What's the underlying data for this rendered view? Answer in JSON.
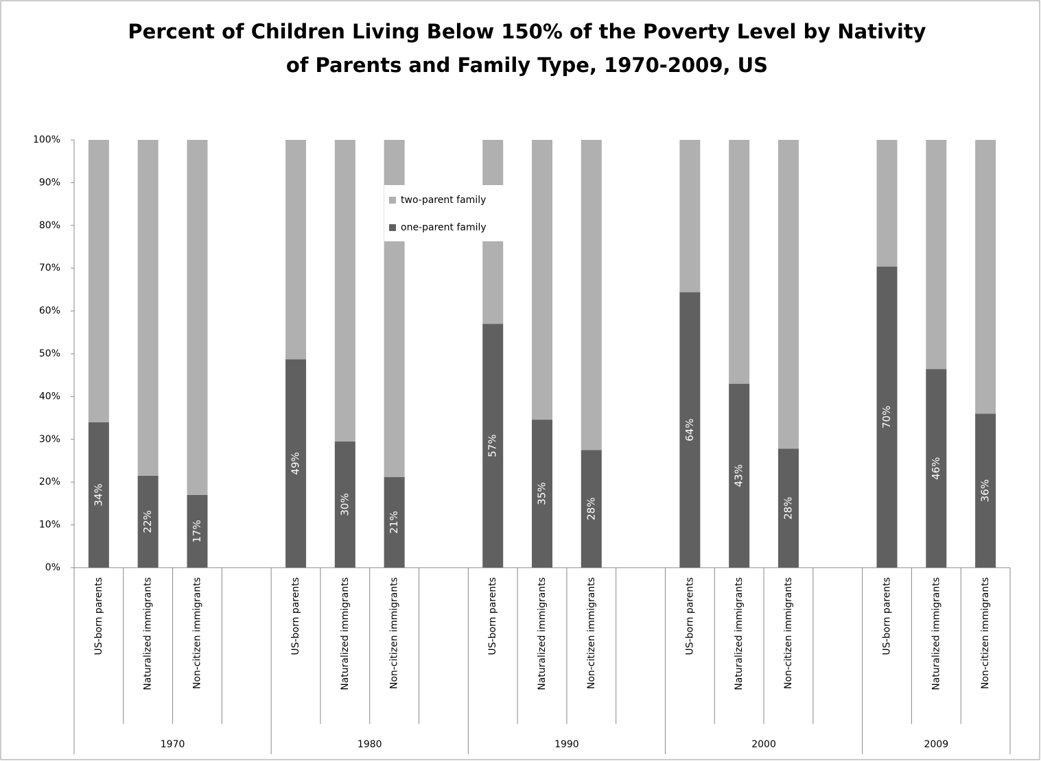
{
  "chart_data": {
    "type": "stacked_bar",
    "title": [
      "Percent of Children Living Below 150% of the Poverty Level by Nativity",
      "of Parents and Family Type, 1970-2009, US"
    ],
    "groups": [
      "1970",
      "1980",
      "1990",
      "2000",
      "2009"
    ],
    "categories": [
      "US-born parents",
      "Naturalized immigrants",
      "Non-citizen immigrants",
      "US-born parents",
      "Naturalized immigrants",
      "Non-citizen immigrants",
      "US-born parents",
      "Naturalized immigrants",
      "Non-citizen immigrants",
      "US-born parents",
      "Naturalized immigrants",
      "Non-citizen immigrants",
      "US-born parents",
      "Naturalized immigrants",
      "Non-citizen immigrants"
    ],
    "series": [
      {
        "name": "one-parent family",
        "color": "#606060",
        "values": [
          34,
          21.5,
          17,
          48.7,
          29.5,
          21.2,
          57,
          34.6,
          27.5,
          64.4,
          43,
          27.8,
          70.4,
          46.4,
          36
        ],
        "value_labels": [
          "34%",
          "22%",
          "17%",
          "49%",
          "30%",
          "21%",
          "57%",
          "35%",
          "28%",
          "64%",
          "43%",
          "28%",
          "70%",
          "46%",
          "36%"
        ]
      },
      {
        "name": "two-parent family",
        "color": "#b0b0b0",
        "values": [
          66,
          78.5,
          83,
          51.3,
          70.5,
          78.8,
          43,
          65.4,
          72.5,
          35.6,
          57,
          72.2,
          29.6,
          53.6,
          64
        ]
      }
    ],
    "ylim": [
      0,
      100
    ],
    "yticks": [
      {
        "value": 0,
        "label": "0%"
      },
      {
        "value": 10,
        "label": "10%"
      },
      {
        "value": 20,
        "label": "20%"
      },
      {
        "value": 30,
        "label": "30%"
      },
      {
        "value": 40,
        "label": "40%"
      },
      {
        "value": 50,
        "label": "50%"
      },
      {
        "value": 60,
        "label": "60%"
      },
      {
        "value": 70,
        "label": "70%"
      },
      {
        "value": 80,
        "label": "80%"
      },
      {
        "value": 90,
        "label": "90%"
      },
      {
        "value": 100,
        "label": "100%"
      }
    ],
    "legend": "inside-top-center"
  }
}
